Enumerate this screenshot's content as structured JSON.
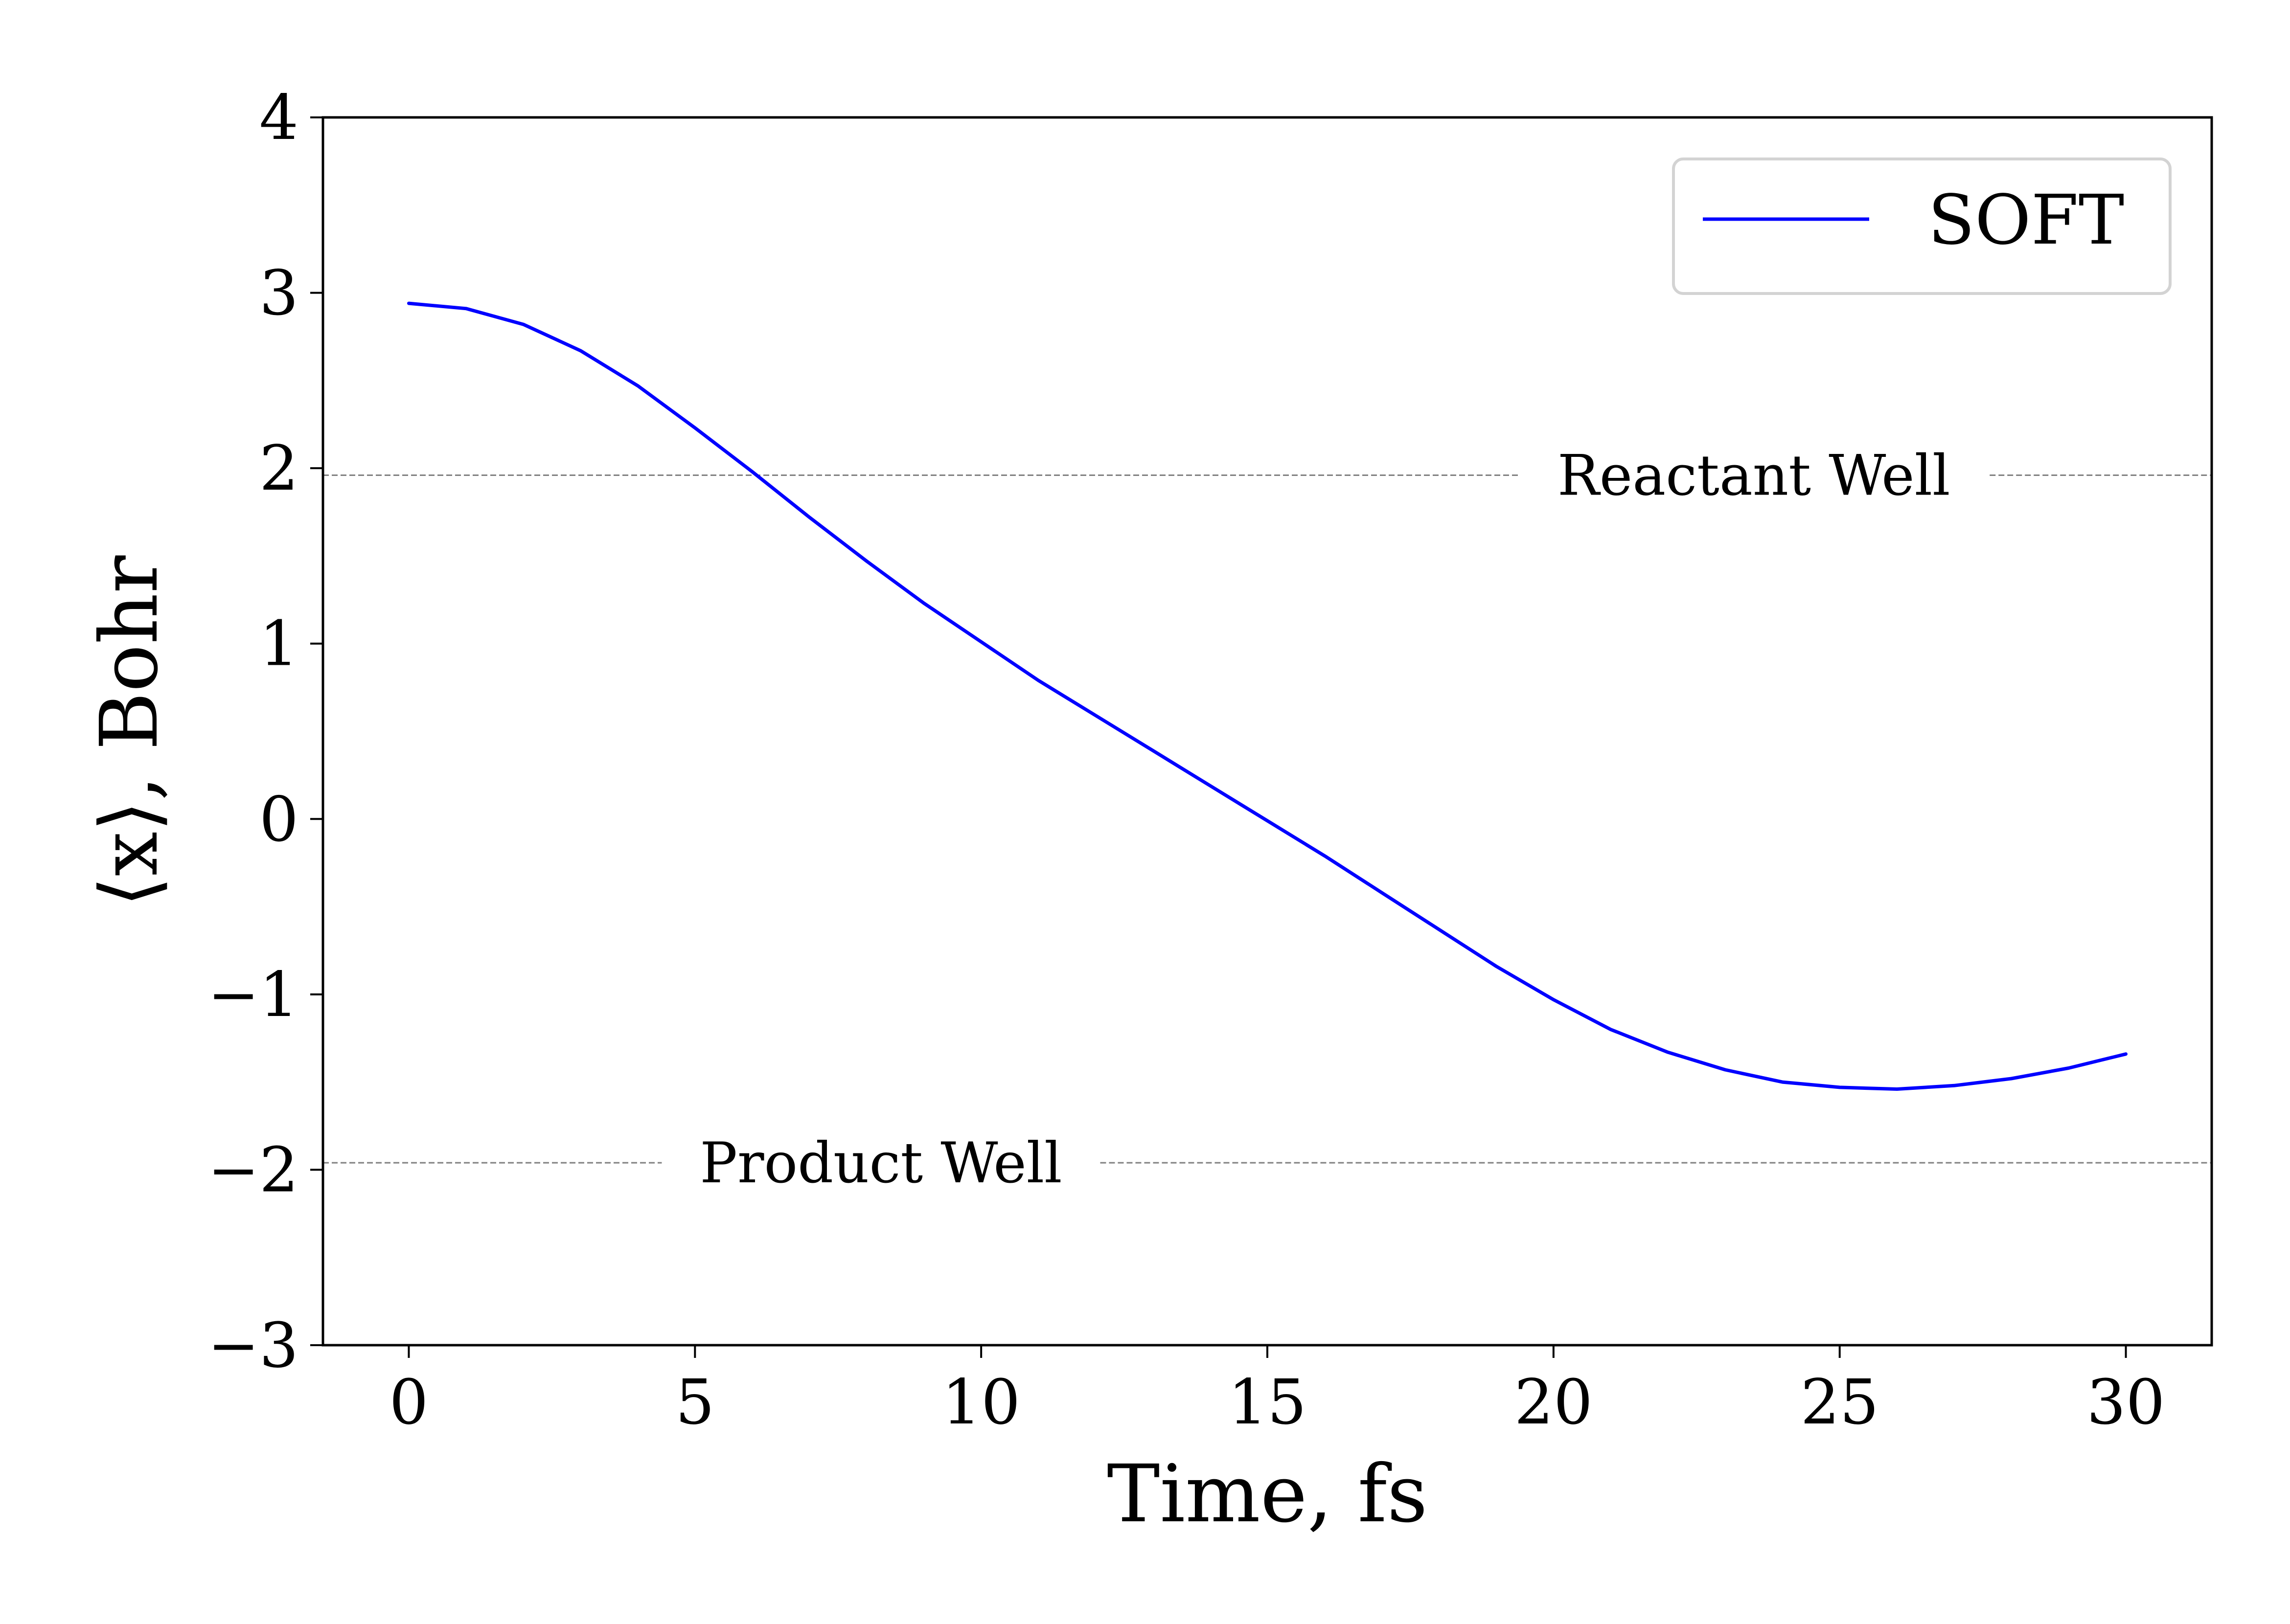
{
  "chart_data": {
    "type": "line",
    "title": "",
    "xlabel": "Time, fs",
    "ylabel": "⟨x⟩, Bohr",
    "xlim": [
      -1.5,
      31.5
    ],
    "ylim": [
      -3,
      4
    ],
    "x_ticks": [
      0,
      5,
      10,
      15,
      20,
      25,
      30
    ],
    "y_ticks": [
      -3,
      -2,
      -1,
      0,
      1,
      2,
      3,
      4
    ],
    "x_tick_labels": [
      "0",
      "5",
      "10",
      "15",
      "20",
      "25",
      "30"
    ],
    "y_tick_labels": [
      "−3",
      "−2",
      "−1",
      "0",
      "1",
      "2",
      "3",
      "4"
    ],
    "grid": false,
    "legend": {
      "placement": "top-right",
      "entries": [
        "SOFT"
      ]
    },
    "series": [
      {
        "name": "SOFT",
        "color": "#0000ff",
        "x": [
          0,
          1,
          2,
          3,
          4,
          5,
          6,
          7,
          8,
          9,
          10,
          11,
          12,
          13,
          14,
          15,
          16,
          17,
          18,
          19,
          20,
          21,
          22,
          23,
          24,
          25,
          26,
          27,
          28,
          29,
          30
        ],
        "y": [
          2.94,
          2.91,
          2.82,
          2.67,
          2.47,
          2.23,
          1.98,
          1.72,
          1.47,
          1.23,
          1.01,
          0.79,
          0.59,
          0.39,
          0.19,
          -0.01,
          -0.21,
          -0.42,
          -0.63,
          -0.84,
          -1.03,
          -1.2,
          -1.33,
          -1.43,
          -1.5,
          -1.53,
          -1.54,
          -1.52,
          -1.48,
          -1.42,
          -1.34
        ]
      }
    ],
    "reference_lines": [
      {
        "label": "Reactant Well",
        "y": 1.96,
        "color": "#808080",
        "label_x": 23.5
      },
      {
        "label": "Product Well",
        "y": -1.96,
        "color": "#808080",
        "label_x": 8.25
      }
    ]
  }
}
